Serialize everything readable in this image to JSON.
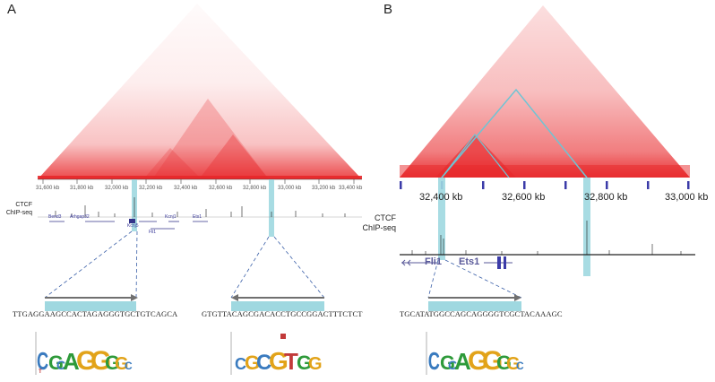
{
  "panels": {
    "a": {
      "label": "A",
      "genomic_ticks": [
        "31,600 kb",
        "31,800 kb",
        "32,000 kb",
        "32,200 kb",
        "32,400 kb",
        "32,600 kb",
        "32,800 kb",
        "33,000 kb",
        "33,200 kb",
        "33,400 kb"
      ],
      "track_label_1": "CTCF",
      "track_label_2": "ChIP-seq",
      "genes": [
        "Bend3",
        "Arhgap32",
        "Kcnj1",
        "Fli1",
        "Ets1",
        "Kcnj5"
      ],
      "left_site_sequence": "TTGAGGAAGCCACTAGAGGGTGCTGTCAGCA",
      "right_site_sequence": "GTGTTACAGCGACACCTGCCGGACTTTCTCT",
      "highlight_color": "#9fd8e0"
    },
    "b": {
      "label": "B",
      "genomic_ticks": [
        "32,400 kb",
        "32,600 kb",
        "32,800 kb",
        "33,000 kb"
      ],
      "track_label_1": "CTCF",
      "track_label_2": "ChIP-seq",
      "genes": [
        "Fli1",
        "Ets1"
      ],
      "site_sequence": "TGCATATGGCCAGCAGGGGTCGCTACAAAGC",
      "highlight_color": "#9fd8e0"
    }
  },
  "colors": {
    "heatmap": "#e8272a",
    "bracket": "#6fc4d4",
    "arrow": "#707070",
    "dashed": "#3a5fa8",
    "chip": "#1a1a1a",
    "gene": "#34348a"
  }
}
